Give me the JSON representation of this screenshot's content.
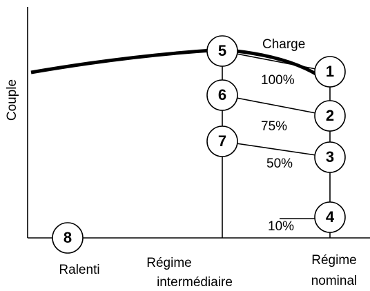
{
  "axis": {
    "y_label": "Couple"
  },
  "load_label": "Charge",
  "loads": [
    "100%",
    "75%",
    "50%",
    "10%"
  ],
  "x_labels": {
    "idle": "Ralenti",
    "intermediate": [
      "Régime",
      "intermédiaire"
    ],
    "rated": [
      "Régime",
      "nominal"
    ]
  },
  "nodes": [
    {
      "label": "1"
    },
    {
      "label": "2"
    },
    {
      "label": "3"
    },
    {
      "label": "4"
    },
    {
      "label": "5"
    },
    {
      "label": "6"
    },
    {
      "label": "7"
    },
    {
      "label": "8"
    }
  ]
}
